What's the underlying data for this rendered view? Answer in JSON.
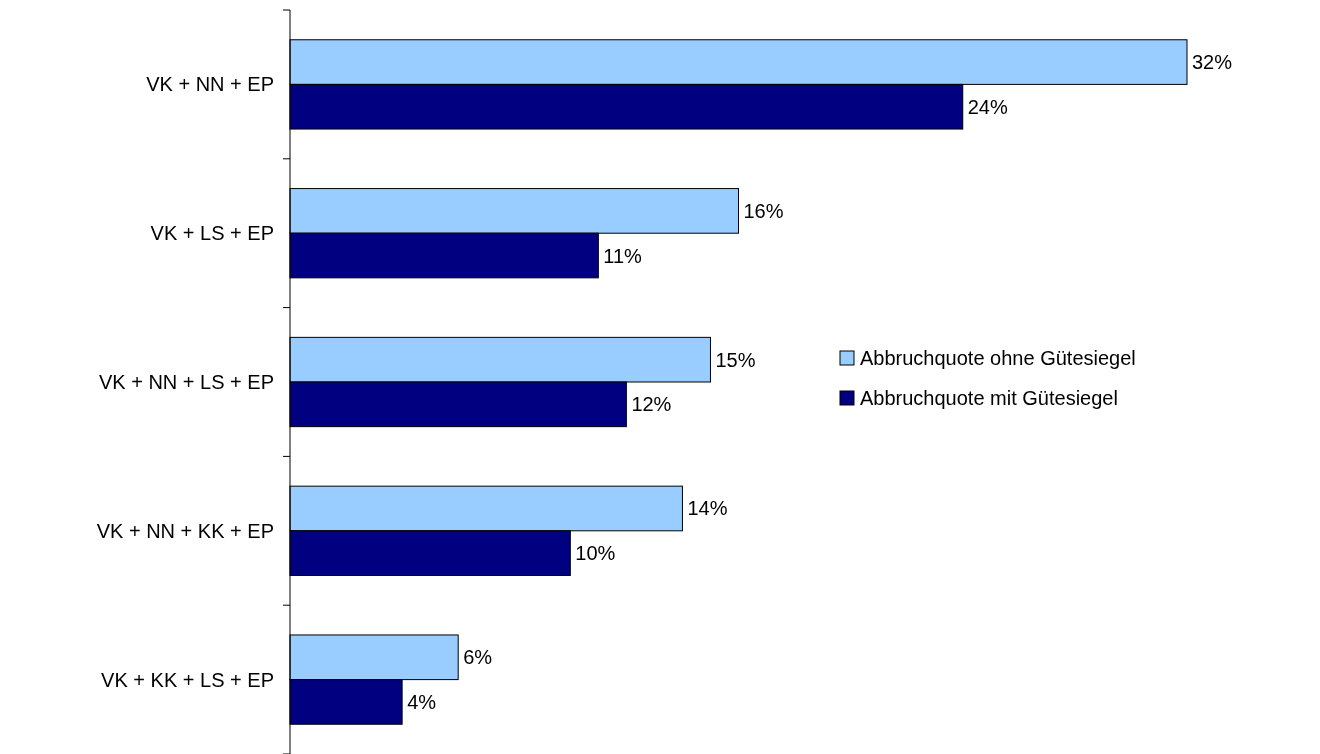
{
  "chart_data": {
    "type": "bar",
    "orientation": "horizontal",
    "categories": [
      "VK + NN + EP",
      "VK + LS + EP",
      "VK + NN + LS + EP",
      "VK + NN + KK + EP",
      "VK + KK + LS + EP"
    ],
    "series": [
      {
        "name": "Abbruchquote ohne Gütesiegel",
        "color": "#99ccff",
        "values": [
          32,
          16,
          15,
          14,
          6
        ],
        "value_labels": [
          "32%",
          "16%",
          "15%",
          "14%",
          "6%"
        ]
      },
      {
        "name": "Abbruchquote mit Gütesiegel",
        "color": "#000080",
        "values": [
          24,
          11,
          12,
          10,
          4
        ],
        "value_labels": [
          "24%",
          "11%",
          "12%",
          "10%",
          "4%"
        ]
      }
    ],
    "legend": "right",
    "grid": false
  }
}
